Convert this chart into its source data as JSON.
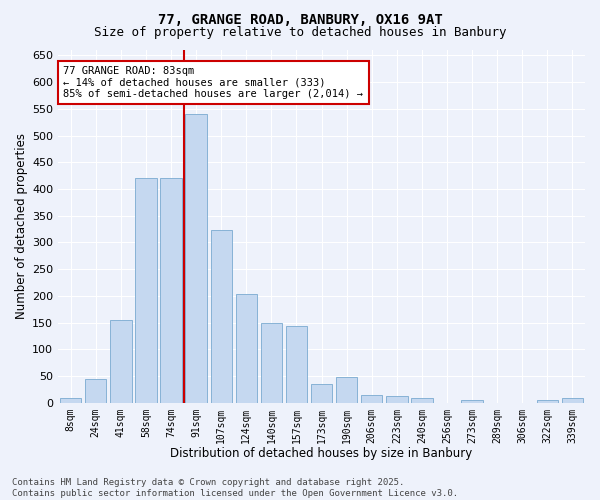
{
  "title1": "77, GRANGE ROAD, BANBURY, OX16 9AT",
  "title2": "Size of property relative to detached houses in Banbury",
  "xlabel": "Distribution of detached houses by size in Banbury",
  "ylabel": "Number of detached properties",
  "bar_labels": [
    "8sqm",
    "24sqm",
    "41sqm",
    "58sqm",
    "74sqm",
    "91sqm",
    "107sqm",
    "124sqm",
    "140sqm",
    "157sqm",
    "173sqm",
    "190sqm",
    "206sqm",
    "223sqm",
    "240sqm",
    "256sqm",
    "273sqm",
    "289sqm",
    "306sqm",
    "322sqm",
    "339sqm"
  ],
  "bar_values": [
    8,
    45,
    155,
    420,
    420,
    540,
    323,
    203,
    150,
    143,
    35,
    48,
    15,
    13,
    8,
    0,
    5,
    0,
    0,
    5,
    8
  ],
  "bar_color": "#c5d8f0",
  "bar_edgecolor": "#7aaad0",
  "red_line_x": 83,
  "annotation_text": "77 GRANGE ROAD: 83sqm\n← 14% of detached houses are smaller (333)\n85% of semi-detached houses are larger (2,014) →",
  "annotation_box_facecolor": "#ffffff",
  "annotation_box_edgecolor": "#cc0000",
  "red_line_color": "#cc0000",
  "ylim_max": 660,
  "yticks": [
    0,
    50,
    100,
    150,
    200,
    250,
    300,
    350,
    400,
    450,
    500,
    550,
    600,
    650
  ],
  "background_color": "#eef2fb",
  "grid_color": "#ffffff",
  "footer_text": "Contains HM Land Registry data © Crown copyright and database right 2025.\nContains public sector information licensed under the Open Government Licence v3.0."
}
